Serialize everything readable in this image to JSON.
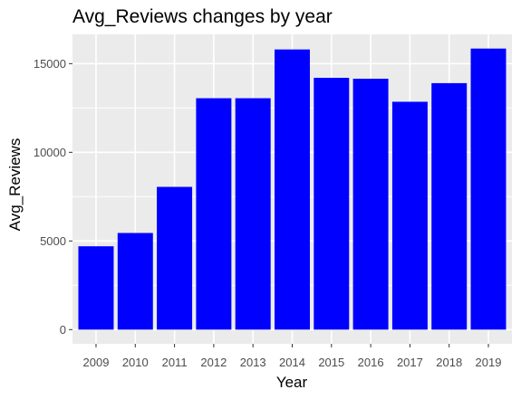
{
  "chart_data": {
    "type": "bar",
    "title": "Avg_Reviews changes by year",
    "xlabel": "Year",
    "ylabel": "Avg_Reviews",
    "categories": [
      "2009",
      "2010",
      "2011",
      "2012",
      "2013",
      "2014",
      "2015",
      "2016",
      "2017",
      "2018",
      "2019"
    ],
    "values": [
      4700,
      5450,
      8050,
      13050,
      13050,
      15800,
      14200,
      14150,
      12850,
      13900,
      15850
    ],
    "ylim": [
      -800,
      16650
    ],
    "yticks": [
      0,
      5000,
      10000,
      15000
    ],
    "ytick_labels": [
      "0",
      "5000",
      "10000",
      "15000"
    ],
    "grid": true,
    "legend": "none",
    "colors": {
      "bar": "#0000FF",
      "panel": "#EBEBEB",
      "grid": "#FFFFFF"
    }
  }
}
